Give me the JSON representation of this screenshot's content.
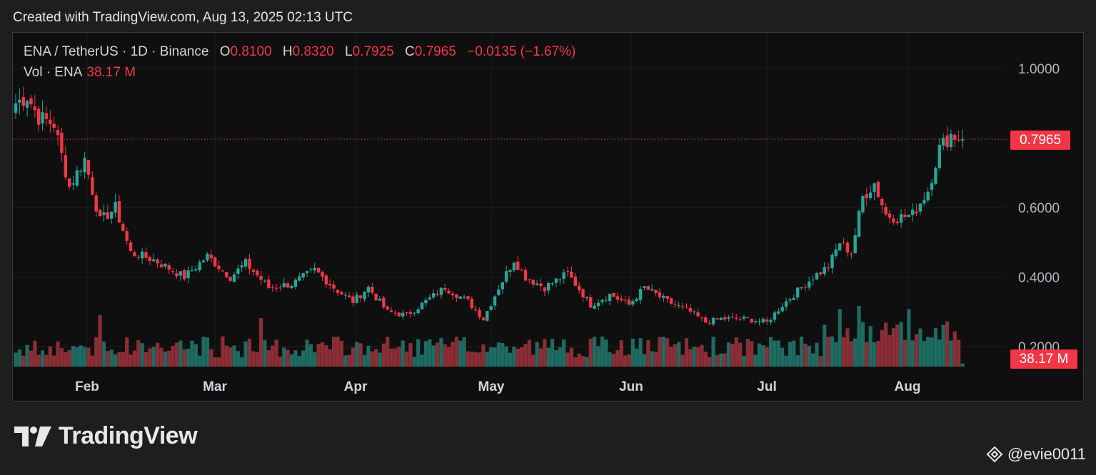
{
  "caption": "Created with TradingView.com, Aug 13, 2025 02:13 UTC",
  "legend": {
    "symbol": "ENA / TetherUS · 1D · Binance",
    "open_label": "O",
    "open": "0.8100",
    "high_label": "H",
    "high": "0.8320",
    "low_label": "L",
    "low": "0.7925",
    "close_label": "C",
    "close": "0.7965",
    "change": "−0.0135 (−1.67%)",
    "vol_label": "Vol · ENA",
    "vol": "38.17 M"
  },
  "price_tag": "0.7965",
  "vol_tag": "38.17 M",
  "brand": "TradingView",
  "watermark": "@evie0011",
  "colors": {
    "up": "#26a69a",
    "down": "#f23645",
    "background": "#0f0f0f"
  },
  "chart_data": {
    "type": "candlestick",
    "ylim": [
      0.15,
      1.05
    ],
    "y_ticks": [
      "1.0000",
      "0.6000",
      "0.4000",
      "0.2000"
    ],
    "x_ticks": [
      "Feb",
      "Mar",
      "Apr",
      "May",
      "Jun",
      "Jul",
      "Aug"
    ],
    "last_price": 0.7965,
    "keypoints": [
      [
        0,
        0.9
      ],
      [
        3,
        0.92
      ],
      [
        6,
        0.86
      ],
      [
        10,
        0.84
      ],
      [
        14,
        0.66
      ],
      [
        18,
        0.74
      ],
      [
        22,
        0.56
      ],
      [
        26,
        0.6
      ],
      [
        30,
        0.47
      ],
      [
        36,
        0.45
      ],
      [
        44,
        0.4
      ],
      [
        50,
        0.46
      ],
      [
        56,
        0.4
      ],
      [
        60,
        0.44
      ],
      [
        66,
        0.37
      ],
      [
        72,
        0.38
      ],
      [
        78,
        0.42
      ],
      [
        84,
        0.36
      ],
      [
        88,
        0.33
      ],
      [
        92,
        0.37
      ],
      [
        97,
        0.3
      ],
      [
        102,
        0.29
      ],
      [
        107,
        0.33
      ],
      [
        112,
        0.37
      ],
      [
        118,
        0.33
      ],
      [
        122,
        0.28
      ],
      [
        126,
        0.37
      ],
      [
        130,
        0.45
      ],
      [
        133,
        0.4
      ],
      [
        138,
        0.37
      ],
      [
        144,
        0.41
      ],
      [
        150,
        0.32
      ],
      [
        155,
        0.35
      ],
      [
        160,
        0.32
      ],
      [
        164,
        0.37
      ],
      [
        170,
        0.33
      ],
      [
        176,
        0.3
      ],
      [
        180,
        0.27
      ],
      [
        184,
        0.28
      ],
      [
        190,
        0.28
      ],
      [
        196,
        0.27
      ],
      [
        200,
        0.32
      ],
      [
        204,
        0.36
      ],
      [
        208,
        0.4
      ],
      [
        212,
        0.43
      ],
      [
        215,
        0.5
      ],
      [
        218,
        0.47
      ],
      [
        221,
        0.63
      ],
      [
        224,
        0.67
      ],
      [
        227,
        0.58
      ],
      [
        230,
        0.57
      ],
      [
        234,
        0.58
      ],
      [
        238,
        0.65
      ],
      [
        241,
        0.77
      ],
      [
        244,
        0.81
      ],
      [
        247,
        0.7965
      ]
    ],
    "volume_highlights": [
      [
        22,
        0.85
      ],
      [
        64,
        0.8
      ],
      [
        215,
        0.95
      ],
      [
        220,
        1.0
      ],
      [
        233,
        0.95
      ]
    ]
  }
}
